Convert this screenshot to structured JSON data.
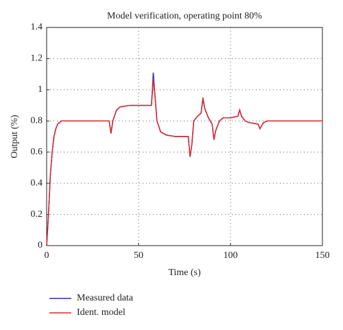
{
  "chart_data": {
    "type": "line",
    "title": "Model verification, operating point 80%",
    "x_label": "Time (s)",
    "y_label": "Output (%)",
    "x": [
      0,
      1,
      2,
      3,
      4,
      5,
      6,
      8,
      10,
      34,
      35,
      36,
      38,
      40,
      45,
      50,
      57,
      57.5,
      58,
      59,
      60,
      62,
      65,
      70,
      77,
      78,
      79,
      80,
      82,
      84,
      85,
      86,
      88,
      90,
      91,
      92,
      94,
      96,
      100,
      104,
      105,
      106,
      108,
      110,
      115,
      116,
      117,
      118,
      120,
      130,
      150
    ],
    "series": [
      {
        "name": "Measured data",
        "color": "#2a2ab8",
        "values": [
          0,
          0.2,
          0.45,
          0.6,
          0.7,
          0.75,
          0.78,
          0.8,
          0.8,
          0.8,
          0.72,
          0.8,
          0.87,
          0.89,
          0.9,
          0.9,
          0.9,
          1.0,
          1.11,
          0.95,
          0.8,
          0.73,
          0.71,
          0.7,
          0.7,
          0.57,
          0.65,
          0.8,
          0.83,
          0.85,
          0.94,
          0.88,
          0.82,
          0.78,
          0.68,
          0.74,
          0.8,
          0.82,
          0.82,
          0.83,
          0.87,
          0.83,
          0.8,
          0.79,
          0.78,
          0.75,
          0.77,
          0.79,
          0.8,
          0.8,
          0.8
        ]
      },
      {
        "name": "Ident. model",
        "color": "#d92b2b",
        "values": [
          0,
          0.2,
          0.45,
          0.6,
          0.7,
          0.75,
          0.78,
          0.8,
          0.8,
          0.8,
          0.72,
          0.8,
          0.87,
          0.89,
          0.9,
          0.9,
          0.9,
          0.98,
          1.07,
          0.95,
          0.8,
          0.73,
          0.71,
          0.7,
          0.7,
          0.57,
          0.65,
          0.8,
          0.83,
          0.85,
          0.95,
          0.88,
          0.82,
          0.78,
          0.68,
          0.74,
          0.8,
          0.82,
          0.82,
          0.83,
          0.87,
          0.83,
          0.8,
          0.79,
          0.78,
          0.75,
          0.77,
          0.79,
          0.8,
          0.8,
          0.8
        ]
      }
    ],
    "xlim": [
      0,
      150
    ],
    "xticks": [
      0,
      50,
      100,
      150
    ],
    "ylim": [
      0,
      1.4
    ],
    "yticks": [
      0,
      0.2,
      0.4,
      0.6,
      0.8,
      1,
      1.2,
      1.4
    ],
    "grid": true
  }
}
